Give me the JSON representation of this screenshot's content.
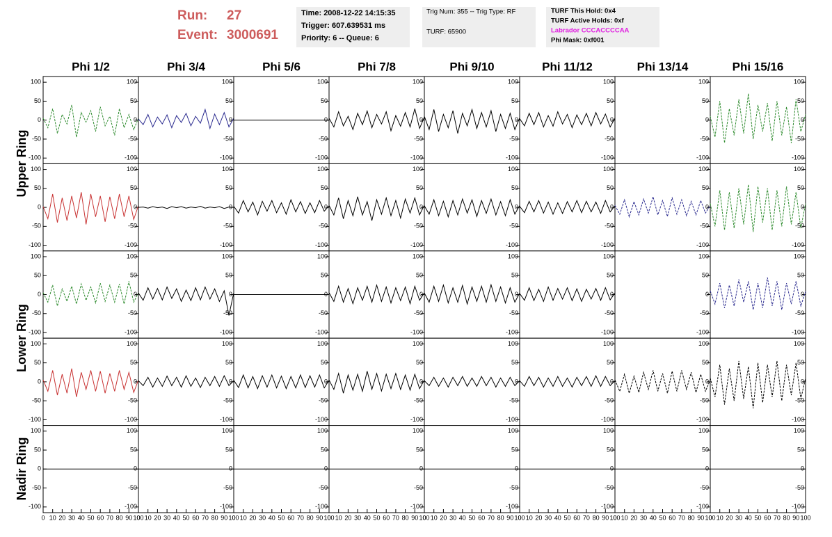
{
  "header": {
    "run_label": "Run:",
    "run": 27,
    "event_label": "Event:",
    "event": 3000691,
    "time": "Time: 2008-12-22 14:15:35",
    "trigger": "Trigger: 607.639531 ms",
    "priority": "Priority: 6 -- Queue: 6",
    "trig_num": "Trig Num: 355 -- Trig Type: RF",
    "turf": "TURF: 65900",
    "turf_hold": "TURF This Hold: 0x4",
    "turf_active": "TURF Active Holds: 0xf",
    "labrador": "Labrador CCCACCCCAA",
    "phi_mask": "Phi Mask: 0xf001"
  },
  "chart_data": {
    "type": "line",
    "columns": [
      "Phi 1/2",
      "Phi 3/4",
      "Phi 5/6",
      "Phi 7/8",
      "Phi 9/10",
      "Phi 11/12",
      "Phi 13/14",
      "Phi 15/16"
    ],
    "ring_labels": [
      "Upper Ring",
      "Lower Ring",
      "Nadir Ring"
    ],
    "xlim": [
      0,
      100
    ],
    "ylim": [
      -115,
      115
    ],
    "xticks": [
      0,
      10,
      20,
      30,
      40,
      50,
      60,
      70,
      80,
      90,
      100
    ],
    "yticks": [
      -100,
      -50,
      0,
      50,
      100
    ],
    "x": [
      0,
      5,
      10,
      15,
      20,
      25,
      30,
      35,
      40,
      45,
      50,
      55,
      60,
      65,
      70,
      75,
      80,
      85,
      90,
      95,
      100
    ],
    "traces": [
      [
        {
          "color": "#2e8b2e",
          "dashed": true,
          "values": [
            5,
            -20,
            30,
            -35,
            15,
            -10,
            40,
            -45,
            20,
            -5,
            25,
            -30,
            35,
            -15,
            10,
            -40,
            30,
            -20,
            15,
            -25,
            5
          ]
        },
        {
          "color": "#2b2b8f",
          "dashed": false,
          "values": [
            3,
            -12,
            15,
            -18,
            8,
            -10,
            14,
            -20,
            12,
            -6,
            18,
            -15,
            10,
            -8,
            28,
            -22,
            16,
            -12,
            20,
            -18,
            5
          ]
        },
        {
          "color": "#000000",
          "dashed": false,
          "values": [
            0,
            0,
            0,
            0,
            0,
            0,
            0,
            0,
            0,
            0,
            0,
            0,
            0,
            0,
            0,
            0,
            0,
            0,
            0,
            0,
            0
          ]
        },
        {
          "color": "#000000",
          "dashed": false,
          "values": [
            5,
            -18,
            22,
            -15,
            10,
            -25,
            18,
            -12,
            24,
            -20,
            15,
            -10,
            22,
            -28,
            12,
            -16,
            20,
            -18,
            30,
            -22,
            8
          ]
        },
        {
          "color": "#000000",
          "dashed": false,
          "values": [
            10,
            -25,
            28,
            -30,
            15,
            -20,
            25,
            -35,
            18,
            -15,
            28,
            -22,
            20,
            -18,
            25,
            -30,
            15,
            -22,
            18,
            -25,
            6
          ]
        },
        {
          "color": "#000000",
          "dashed": false,
          "values": [
            4,
            -15,
            18,
            -12,
            20,
            -18,
            12,
            -16,
            22,
            -10,
            15,
            -20,
            14,
            -12,
            18,
            -15,
            20,
            -10,
            16,
            -18,
            5
          ]
        },
        null,
        {
          "color": "#2e8b2e",
          "dashed": true,
          "values": [
            10,
            -45,
            50,
            -60,
            30,
            -40,
            55,
            -35,
            70,
            -50,
            40,
            -30,
            45,
            -55,
            50,
            -40,
            35,
            -60,
            55,
            -30,
            15
          ]
        }
      ],
      [
        {
          "color": "#c83232",
          "dashed": false,
          "values": [
            2,
            -30,
            35,
            -40,
            25,
            -35,
            30,
            -28,
            40,
            -45,
            35,
            -25,
            30,
            -38,
            28,
            -30,
            35,
            -25,
            30,
            -32,
            5
          ]
        },
        {
          "color": "#000000",
          "dashed": false,
          "values": [
            0,
            1,
            -2,
            2,
            -1,
            1,
            -3,
            2,
            -1,
            2,
            -2,
            1,
            -1,
            3,
            -2,
            1,
            -1,
            2,
            -3,
            1,
            0
          ]
        },
        {
          "color": "#000000",
          "dashed": false,
          "values": [
            3,
            -15,
            18,
            -12,
            14,
            -20,
            16,
            -10,
            18,
            -14,
            12,
            -18,
            20,
            -12,
            15,
            -16,
            12,
            -14,
            18,
            -10,
            4
          ]
        },
        {
          "color": "#000000",
          "dashed": false,
          "values": [
            5,
            -20,
            25,
            -30,
            18,
            -22,
            28,
            -20,
            15,
            -35,
            20,
            -18,
            25,
            -22,
            18,
            -28,
            22,
            -15,
            25,
            -20,
            6
          ]
        },
        {
          "color": "#000000",
          "dashed": false,
          "values": [
            4,
            -18,
            20,
            -22,
            16,
            -25,
            18,
            -20,
            22,
            -15,
            20,
            -24,
            18,
            -16,
            22,
            -20,
            15,
            -22,
            20,
            -18,
            5
          ]
        },
        {
          "color": "#000000",
          "dashed": false,
          "values": [
            3,
            -14,
            16,
            -12,
            18,
            -15,
            14,
            -18,
            12,
            -16,
            15,
            -12,
            18,
            -14,
            16,
            -12,
            14,
            -16,
            18,
            -12,
            4
          ]
        },
        {
          "color": "#2b2b8f",
          "dashed": true,
          "values": [
            5,
            -18,
            20,
            -25,
            15,
            -20,
            22,
            -15,
            28,
            -20,
            18,
            -24,
            25,
            -18,
            20,
            -22,
            16,
            -20,
            18,
            -15,
            5
          ]
        },
        {
          "color": "#2e8b2e",
          "dashed": true,
          "values": [
            10,
            -50,
            45,
            -60,
            40,
            -55,
            50,
            -45,
            60,
            -65,
            55,
            -40,
            50,
            -60,
            45,
            -50,
            55,
            -45,
            40,
            -55,
            10
          ]
        }
      ],
      [
        {
          "color": "#2e8b2e",
          "dashed": true,
          "values": [
            5,
            -20,
            25,
            -30,
            15,
            -18,
            22,
            -25,
            28,
            -15,
            20,
            -22,
            30,
            -18,
            25,
            -20,
            28,
            -25,
            35,
            -20,
            5
          ]
        },
        {
          "color": "#000000",
          "dashed": false,
          "values": [
            4,
            -15,
            18,
            -12,
            16,
            -14,
            20,
            -10,
            15,
            -18,
            12,
            -16,
            18,
            -14,
            20,
            -12,
            15,
            -18,
            10,
            -55,
            5
          ]
        },
        {
          "color": "#000000",
          "dashed": false,
          "values": [
            0,
            0,
            0,
            0,
            0,
            0,
            0,
            0,
            0,
            0,
            0,
            0,
            0,
            0,
            0,
            0,
            0,
            0,
            0,
            0,
            0
          ]
        },
        {
          "color": "#000000",
          "dashed": false,
          "values": [
            5,
            -18,
            22,
            -20,
            16,
            -24,
            18,
            -15,
            22,
            -20,
            25,
            -18,
            20,
            -22,
            18,
            -16,
            20,
            -24,
            22,
            -15,
            5
          ]
        },
        {
          "color": "#000000",
          "dashed": false,
          "values": [
            4,
            -20,
            22,
            -18,
            25,
            -22,
            18,
            -20,
            24,
            -25,
            20,
            -18,
            22,
            -20,
            26,
            -18,
            20,
            -22,
            18,
            -20,
            4
          ]
        },
        {
          "color": "#000000",
          "dashed": false,
          "values": [
            3,
            -15,
            18,
            -16,
            14,
            -18,
            20,
            -15,
            16,
            -12,
            18,
            -16,
            15,
            -18,
            14,
            -12,
            16,
            -15,
            18,
            -14,
            4
          ]
        },
        null,
        {
          "color": "#2b2b8f",
          "dashed": true,
          "values": [
            10,
            -25,
            30,
            -35,
            25,
            -30,
            40,
            -20,
            35,
            -40,
            30,
            -35,
            45,
            -30,
            35,
            -40,
            30,
            -25,
            35,
            -30,
            8
          ]
        }
      ],
      [
        {
          "color": "#c83232",
          "dashed": false,
          "values": [
            5,
            -25,
            30,
            -35,
            20,
            -30,
            35,
            -40,
            25,
            -20,
            30,
            -25,
            28,
            -30,
            22,
            -25,
            30,
            -20,
            25,
            -28,
            5
          ]
        },
        {
          "color": "#000000",
          "dashed": false,
          "values": [
            3,
            -10,
            12,
            -14,
            10,
            -12,
            15,
            -10,
            12,
            -14,
            16,
            -12,
            10,
            -15,
            12,
            -10,
            14,
            -12,
            16,
            -10,
            3
          ]
        },
        {
          "color": "#000000",
          "dashed": false,
          "values": [
            4,
            -15,
            18,
            -16,
            14,
            -18,
            16,
            -14,
            18,
            -16,
            15,
            -18,
            14,
            -16,
            18,
            -15,
            16,
            -14,
            18,
            -16,
            4
          ]
        },
        {
          "color": "#000000",
          "dashed": false,
          "values": [
            5,
            -20,
            22,
            -30,
            18,
            -22,
            20,
            -25,
            28,
            -20,
            22,
            -24,
            20,
            -18,
            22,
            -20,
            18,
            -22,
            20,
            -18,
            5
          ]
        },
        {
          "color": "#000000",
          "dashed": false,
          "values": [
            3,
            -10,
            12,
            -12,
            10,
            -14,
            12,
            -10,
            14,
            -12,
            10,
            -12,
            14,
            -10,
            12,
            -14,
            10,
            -12,
            12,
            -10,
            3
          ]
        },
        {
          "color": "#000000",
          "dashed": false,
          "values": [
            3,
            -12,
            14,
            -10,
            12,
            -14,
            10,
            -12,
            14,
            -12,
            10,
            -14,
            12,
            -10,
            14,
            -12,
            16,
            -12,
            14,
            -10,
            3
          ]
        },
        {
          "color": "#000000",
          "dashed": true,
          "values": [
            5,
            -25,
            20,
            -30,
            15,
            -28,
            25,
            -20,
            30,
            -25,
            22,
            -30,
            28,
            -25,
            30,
            -20,
            25,
            -28,
            20,
            -25,
            5
          ]
        },
        {
          "color": "#000000",
          "dashed": true,
          "values": [
            10,
            -40,
            45,
            -60,
            35,
            -50,
            55,
            -45,
            40,
            -70,
            50,
            -55,
            45,
            -40,
            55,
            -50,
            45,
            -35,
            50,
            -45,
            10
          ]
        }
      ],
      [
        {
          "color": "#000000",
          "dashed": false,
          "values": [
            0,
            0,
            0,
            0,
            0,
            0,
            0,
            0,
            0,
            0,
            0,
            0,
            0,
            0,
            0,
            0,
            0,
            0,
            0,
            0,
            0
          ]
        },
        {
          "color": "#000000",
          "dashed": false,
          "values": [
            0,
            0,
            0,
            0,
            0,
            0,
            0,
            0,
            0,
            0,
            0,
            0,
            0,
            0,
            0,
            0,
            0,
            0,
            0,
            0,
            0
          ]
        },
        {
          "color": "#000000",
          "dashed": false,
          "values": [
            0,
            0,
            0,
            0,
            0,
            0,
            0,
            0,
            0,
            0,
            0,
            0,
            0,
            0,
            0,
            0,
            0,
            0,
            0,
            0,
            0
          ]
        },
        {
          "color": "#000000",
          "dashed": false,
          "values": [
            0,
            0,
            0,
            0,
            0,
            0,
            0,
            0,
            0,
            0,
            0,
            0,
            0,
            0,
            0,
            0,
            0,
            0,
            0,
            0,
            0
          ]
        },
        {
          "color": "#000000",
          "dashed": false,
          "values": [
            0,
            0,
            0,
            0,
            0,
            0,
            0,
            0,
            0,
            0,
            0,
            0,
            0,
            0,
            0,
            0,
            0,
            0,
            0,
            0,
            0
          ]
        },
        {
          "color": "#000000",
          "dashed": false,
          "values": [
            0,
            0,
            0,
            0,
            0,
            0,
            0,
            0,
            0,
            0,
            0,
            0,
            0,
            0,
            0,
            0,
            0,
            0,
            0,
            0,
            0
          ]
        },
        {
          "color": "#000000",
          "dashed": false,
          "values": [
            0,
            0,
            0,
            0,
            0,
            0,
            0,
            0,
            0,
            0,
            0,
            0,
            0,
            0,
            0,
            0,
            0,
            0,
            0,
            0,
            0
          ]
        },
        {
          "color": "#000000",
          "dashed": false,
          "values": [
            0,
            0,
            0,
            0,
            0,
            0,
            0,
            0,
            0,
            0,
            0,
            0,
            0,
            0,
            0,
            0,
            0,
            0,
            0,
            0,
            0
          ]
        }
      ]
    ]
  }
}
